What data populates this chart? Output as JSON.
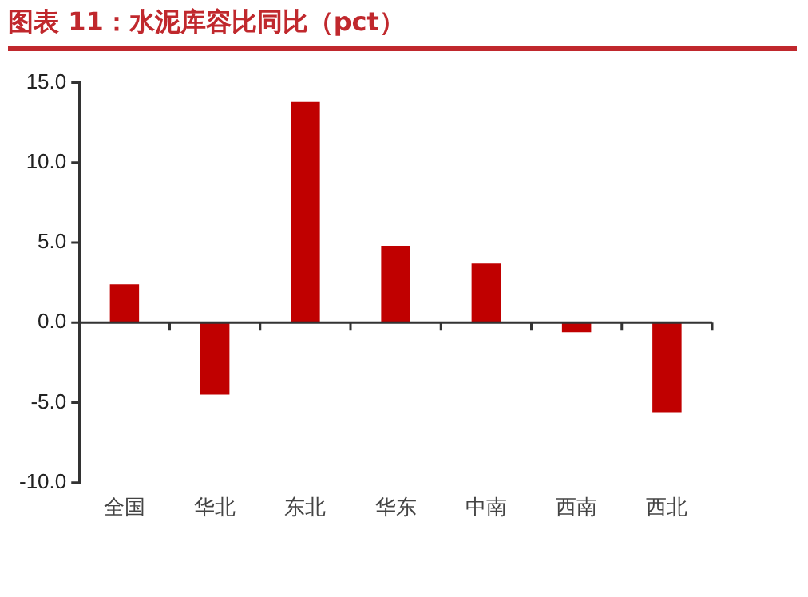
{
  "chart_data": {
    "type": "bar",
    "title": "图表 11：水泥库容比同比（pct）",
    "categories": [
      "全国",
      "华北",
      "东北",
      "华东",
      "中南",
      "西南",
      "西北"
    ],
    "values": [
      2.4,
      -4.5,
      13.8,
      4.8,
      3.7,
      -0.6,
      -5.6
    ],
    "color": "#c00000",
    "ylim": [
      -10,
      15
    ],
    "yticks": [
      {
        "value": -10,
        "label": "-10.0"
      },
      {
        "value": -5,
        "label": "-5.0"
      },
      {
        "value": 0,
        "label": "0.0"
      },
      {
        "value": 5,
        "label": "5.0"
      },
      {
        "value": 10,
        "label": "10.0"
      },
      {
        "value": 15,
        "label": "15.0"
      }
    ],
    "legend": false
  }
}
